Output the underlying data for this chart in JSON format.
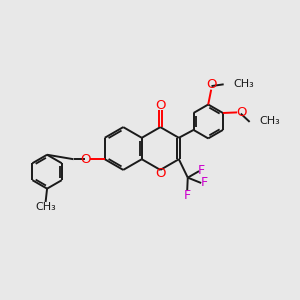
{
  "bg_color": "#e8e8e8",
  "bond_color": "#1a1a1a",
  "oxygen_color": "#ff0000",
  "fluorine_color": "#cc00cc",
  "bond_lw": 1.4,
  "dbo": 0.055,
  "figsize": [
    3.0,
    3.0
  ],
  "dpi": 100,
  "xlim": [
    0,
    10
  ],
  "ylim": [
    0,
    10
  ],
  "r_main": 0.72,
  "r_sub": 0.62
}
